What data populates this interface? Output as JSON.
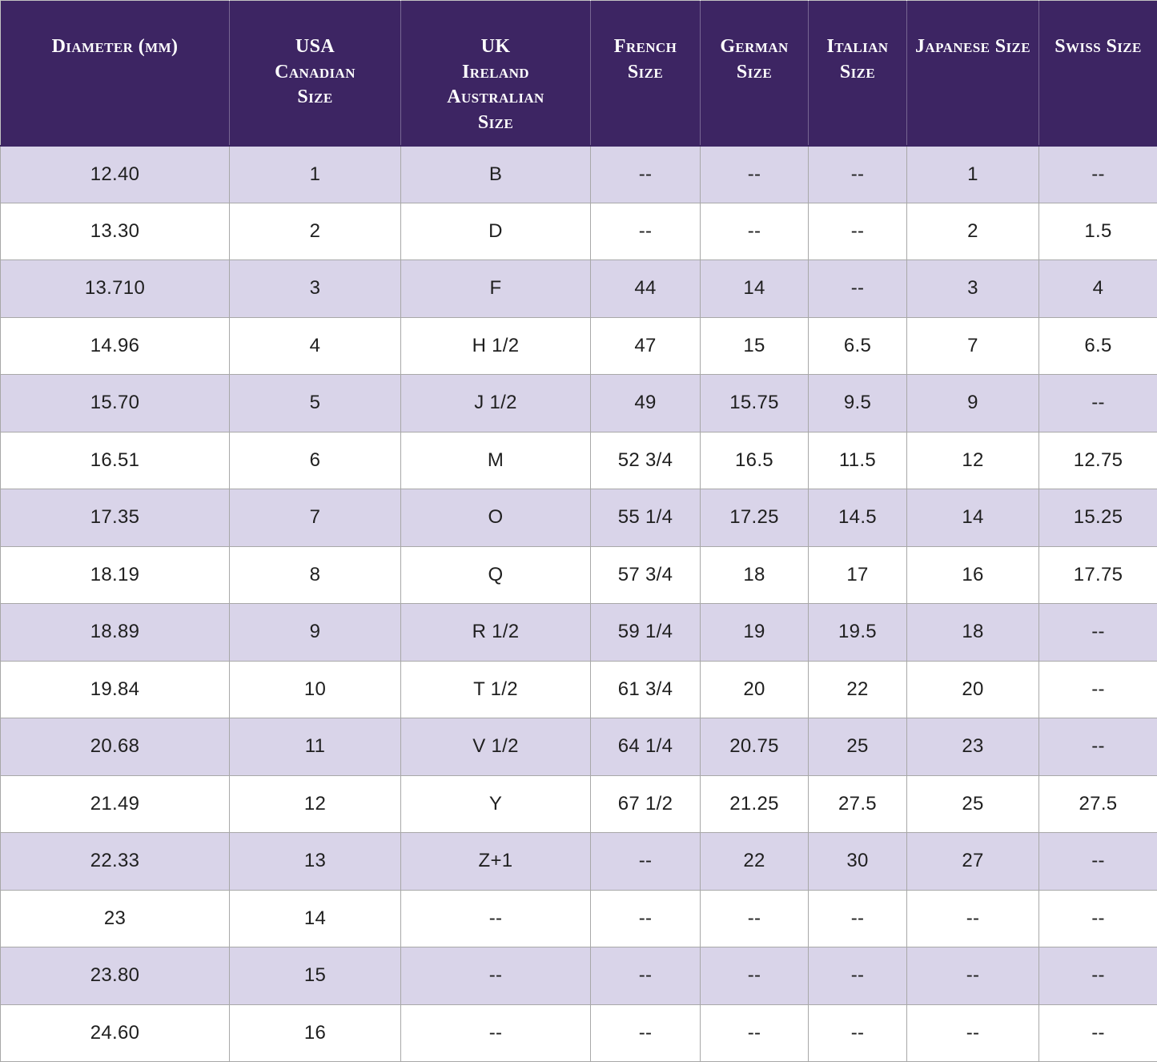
{
  "colors": {
    "header_bg": "#3d2563",
    "header_text": "#ffffff",
    "row_stripe": "#d9d4e9",
    "row_white": "#ffffff",
    "border_color": "#a8a8a8",
    "body_text": "#1f1f1f"
  },
  "chart_data": {
    "type": "table",
    "columns": [
      {
        "id": "diameter_mm",
        "label": "Diameter (mm)"
      },
      {
        "id": "usa_canadian",
        "label": "USA\nCanadian\nSize"
      },
      {
        "id": "uk_ireland_australian",
        "label": "UK\nIreland\nAustralian\nSize"
      },
      {
        "id": "french",
        "label": "French\nSize"
      },
      {
        "id": "german",
        "label": "German\nSize"
      },
      {
        "id": "italian",
        "label": "Italian\nSize"
      },
      {
        "id": "japanese",
        "label": "Japanese Size"
      },
      {
        "id": "swiss",
        "label": "Swiss Size"
      }
    ],
    "rows": [
      [
        "12.40",
        "1",
        "B",
        "--",
        "--",
        "--",
        "1",
        "--"
      ],
      [
        "13.30",
        "2",
        "D",
        "--",
        "--",
        "--",
        "2",
        "1.5"
      ],
      [
        "13.710",
        "3",
        "F",
        "44",
        "14",
        "--",
        "3",
        "4"
      ],
      [
        "14.96",
        "4",
        "H 1/2",
        "47",
        "15",
        "6.5",
        "7",
        "6.5"
      ],
      [
        "15.70",
        "5",
        "J 1/2",
        "49",
        "15.75",
        "9.5",
        "9",
        "--"
      ],
      [
        "16.51",
        "6",
        "M",
        "52 3/4",
        "16.5",
        "11.5",
        "12",
        "12.75"
      ],
      [
        "17.35",
        "7",
        "O",
        "55 1/4",
        "17.25",
        "14.5",
        "14",
        "15.25"
      ],
      [
        "18.19",
        "8",
        "Q",
        "57 3/4",
        "18",
        "17",
        "16",
        "17.75"
      ],
      [
        "18.89",
        "9",
        "R 1/2",
        "59 1/4",
        "19",
        "19.5",
        "18",
        "--"
      ],
      [
        "19.84",
        "10",
        "T 1/2",
        "61 3/4",
        "20",
        "22",
        "20",
        "--"
      ],
      [
        "20.68",
        "11",
        "V 1/2",
        "64 1/4",
        "20.75",
        "25",
        "23",
        "--"
      ],
      [
        "21.49",
        "12",
        "Y",
        "67 1/2",
        "21.25",
        "27.5",
        "25",
        "27.5"
      ],
      [
        "22.33",
        "13",
        "Z+1",
        "--",
        "22",
        "30",
        "27",
        "--"
      ],
      [
        "23",
        "14",
        "--",
        "--",
        "--",
        "--",
        "--",
        "--"
      ],
      [
        "23.80",
        "15",
        "--",
        "--",
        "--",
        "--",
        "--",
        "--"
      ],
      [
        "24.60",
        "16",
        "--",
        "--",
        "--",
        "--",
        "--",
        "--"
      ]
    ]
  }
}
